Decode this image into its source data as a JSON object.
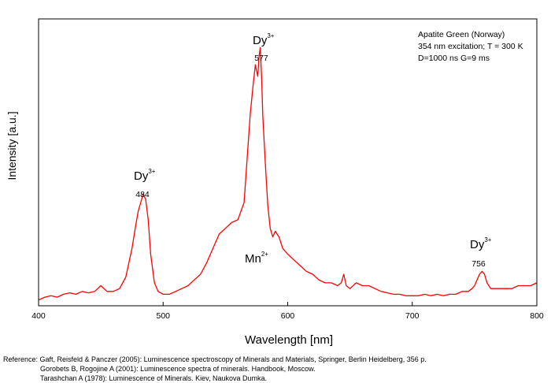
{
  "chart_data": {
    "type": "line",
    "xlabel": "Wavelength [nm]",
    "ylabel": "Intensity [a.u.]",
    "xlim": [
      400,
      800
    ],
    "ylim": [
      0,
      100
    ],
    "x_ticks": [
      400,
      500,
      600,
      700,
      800
    ],
    "y_ticks": [],
    "grid": false,
    "line_color": "#ff0000",
    "info_lines": [
      "Apatite Green (Norway)",
      "354 nm excitation; T = 300 K",
      "D=1000 ns G=9 ms"
    ],
    "annotations": [
      {
        "ion": "Dy",
        "charge": "3+",
        "value": "484"
      },
      {
        "ion": "Dy",
        "charge": "3+",
        "value": "577"
      },
      {
        "ion": "Mn",
        "charge": "2+",
        "value": ""
      },
      {
        "ion": "Dy",
        "charge": "3+",
        "value": "756"
      }
    ],
    "series": [
      {
        "x": [
          400,
          405,
          410,
          415,
          420,
          425,
          430,
          435,
          440,
          445,
          450,
          455,
          460,
          465,
          470,
          475,
          478,
          480,
          482,
          484,
          486,
          488,
          490,
          493,
          496,
          500,
          505,
          510,
          515,
          520,
          525,
          530,
          535,
          540,
          545,
          550,
          555,
          560,
          565,
          568,
          570,
          572,
          574,
          575,
          576,
          577,
          578,
          579,
          580,
          582,
          584,
          586,
          588,
          590,
          593,
          596,
          600,
          605,
          610,
          615,
          620,
          625,
          630,
          635,
          640,
          643,
          645,
          647,
          650,
          655,
          660,
          665,
          670,
          675,
          680,
          685,
          690,
          695,
          700,
          705,
          710,
          715,
          720,
          725,
          730,
          735,
          740,
          745,
          748,
          750,
          752,
          754,
          756,
          758,
          760,
          763,
          766,
          770,
          775,
          780,
          785,
          790,
          795,
          800
        ],
        "y": [
          2,
          3,
          3.5,
          3,
          4,
          4.5,
          4,
          5,
          4.5,
          5,
          7,
          5,
          5,
          6,
          10,
          20,
          28,
          33,
          36,
          39,
          37,
          30,
          18,
          8,
          5,
          4,
          4,
          5,
          6,
          7,
          9,
          11,
          15,
          20,
          25,
          27,
          29,
          30,
          36,
          55,
          67,
          76,
          84,
          82,
          80,
          87,
          90,
          80,
          66,
          50,
          35,
          27,
          24,
          26,
          24,
          20,
          18,
          16,
          14,
          12,
          11,
          9,
          8,
          8,
          7,
          8,
          11,
          7,
          6,
          8,
          7,
          7,
          6,
          5,
          4.5,
          4,
          4,
          3.5,
          3.5,
          3.5,
          4,
          3.5,
          4,
          3.5,
          4,
          4,
          5,
          5,
          6,
          7,
          9,
          11,
          12,
          11,
          8,
          6,
          6,
          6,
          6,
          6,
          7,
          7,
          7,
          8
        ]
      }
    ]
  },
  "references": {
    "line1": "Reference: Gaft, Reisfeld & Panczer (2005): Luminescence spectroscopy of Minerals and Materials, Springer, Berlin Heidelberg, 356 p.",
    "line2": "Gorobets B, Rogojine A (2001): Luminescence spectra of minerals. Handbook, Moscow.",
    "line3": "Tarashchan A (1978): Luminescence of Minerals. Kiev, Naukova Dumka."
  }
}
